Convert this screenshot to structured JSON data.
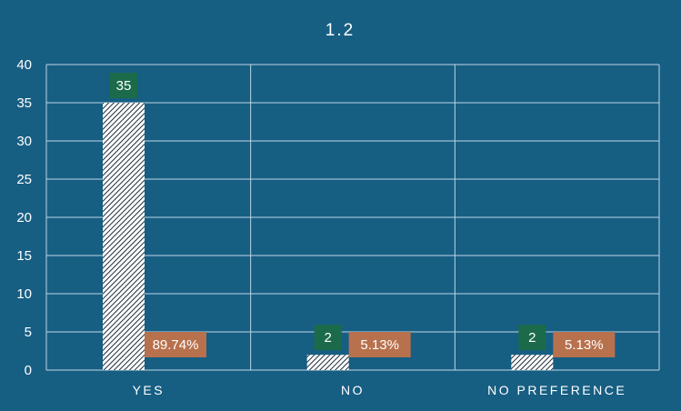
{
  "chart_data": {
    "type": "bar",
    "title": "1.2",
    "categories": [
      "YES",
      "NO",
      "NO PREFERENCE"
    ],
    "values": [
      35,
      2,
      2
    ],
    "percent_labels": [
      "89.74%",
      "5.13%",
      "5.13%"
    ],
    "ylim": [
      0,
      40
    ],
    "yticks": [
      0,
      5,
      10,
      15,
      20,
      25,
      30,
      35,
      40
    ],
    "grid": true,
    "xlabel": "",
    "ylabel": ""
  },
  "colors": {
    "background": "#175e83",
    "bar_fill": "#ffffff",
    "bar_hatch": "#1c2b3a",
    "count_label_bg": "#1b6b4a",
    "percent_label_bg": "#b8714d"
  }
}
